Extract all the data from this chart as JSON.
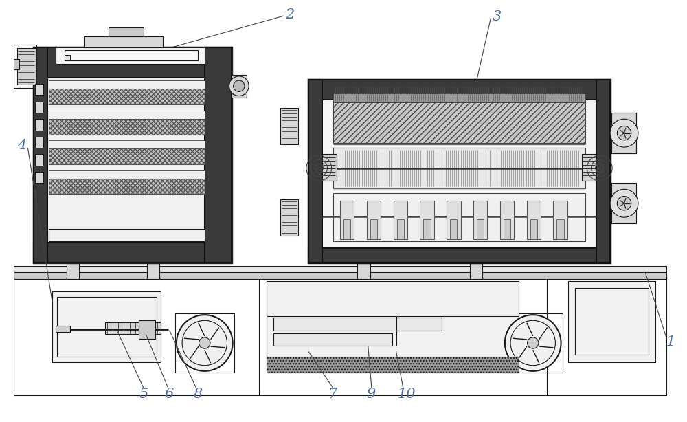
{
  "background_color": "#ffffff",
  "line_color": "#1a1a1a",
  "label_color": "#4a6fa5",
  "fig_width": 10.0,
  "fig_height": 6.14,
  "border_color": "#333333",
  "hatch_color": "#555555",
  "dark_fill": "#3a3a3a",
  "mid_fill": "#888888",
  "light_fill": "#d8d8d8",
  "very_light": "#f0f0f0"
}
